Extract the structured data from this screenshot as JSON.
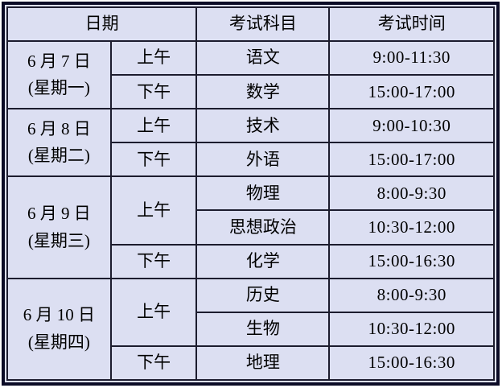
{
  "colors": {
    "page_background": "#ffffff",
    "table_background": "#dcdff2",
    "outer_border": "#0b0b26",
    "grid_line": "#1c1c2e",
    "text": "#000000"
  },
  "table": {
    "headers": {
      "date": "日期",
      "subject": "考试科目",
      "time": "考试时间"
    },
    "days": [
      {
        "date": "6 月 7 日",
        "weekday": "(星期一)",
        "sessions": [
          {
            "period": "上午",
            "exams": [
              {
                "subject": "语文",
                "time": "9:00-11:30"
              }
            ]
          },
          {
            "period": "下午",
            "exams": [
              {
                "subject": "数学",
                "time": "15:00-17:00"
              }
            ]
          }
        ]
      },
      {
        "date": "6 月 8 日",
        "weekday": "(星期二)",
        "sessions": [
          {
            "period": "上午",
            "exams": [
              {
                "subject": "技术",
                "time": "9:00-10:30"
              }
            ]
          },
          {
            "period": "下午",
            "exams": [
              {
                "subject": "外语",
                "time": "15:00-17:00"
              }
            ]
          }
        ]
      },
      {
        "date": "6 月 9 日",
        "weekday": "(星期三)",
        "sessions": [
          {
            "period": "上午",
            "exams": [
              {
                "subject": "物理",
                "time": "8:00-9:30"
              },
              {
                "subject": "思想政治",
                "time": "10:30-12:00"
              }
            ]
          },
          {
            "period": "下午",
            "exams": [
              {
                "subject": "化学",
                "time": "15:00-16:30"
              }
            ]
          }
        ]
      },
      {
        "date": "6 月 10 日",
        "weekday": "(星期四)",
        "sessions": [
          {
            "period": "上午",
            "exams": [
              {
                "subject": "历史",
                "time": "8:00-9:30"
              },
              {
                "subject": "生物",
                "time": "10:30-12:00"
              }
            ]
          },
          {
            "period": "下午",
            "exams": [
              {
                "subject": "地理",
                "time": "15:00-16:30"
              }
            ]
          }
        ]
      }
    ]
  }
}
